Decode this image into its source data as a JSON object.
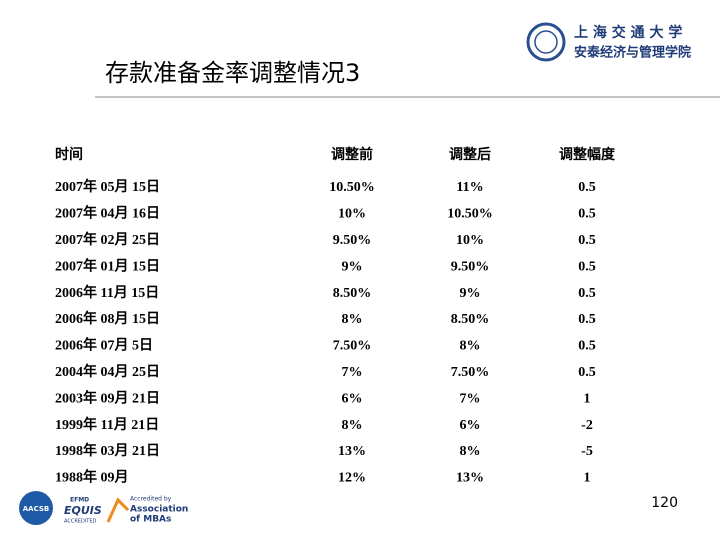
{
  "header": {
    "university": "上 海 交 通 大 学",
    "school": "安泰经济与管理学院"
  },
  "title": "存款准备金率调整情况3",
  "table": {
    "columns": [
      "时间",
      "调整前",
      "调整后",
      "调整幅度"
    ],
    "rows": [
      [
        "2007年 05月 15日",
        "10.50%",
        "11%",
        "0.5"
      ],
      [
        "2007年 04月 16日",
        "10%",
        "10.50%",
        "0.5"
      ],
      [
        "2007年 02月 25日",
        "9.50%",
        "10%",
        "0.5"
      ],
      [
        "2007年 01月 15日",
        "9%",
        "9.50%",
        "0.5"
      ],
      [
        "2006年 11月 15日",
        "8.50%",
        "9%",
        "0.5"
      ],
      [
        "2006年 08月 15日",
        "8%",
        "8.50%",
        "0.5"
      ],
      [
        "2006年 07月 5日",
        "7.50%",
        "8%",
        "0.5"
      ],
      [
        "2004年 04月 25日",
        "7%",
        "7.50%",
        "0.5"
      ],
      [
        "2003年 09月 21日",
        "6%",
        "7%",
        "1"
      ],
      [
        "1999年 11月 21日",
        "8%",
        "6%",
        "-2"
      ],
      [
        "1998年 03月 21日",
        "13%",
        "8%",
        "-5"
      ],
      [
        "1988年 09月",
        "12%",
        "13%",
        "1"
      ]
    ]
  },
  "page_number": "120",
  "footer": {
    "aacsb": "AACSB",
    "efmd": "EFMD",
    "equis": "EQUIS",
    "equis_sub": "ACCREDITED",
    "amba_1": "Accredited by",
    "amba_2": "Association",
    "amba_3": "of MBAs"
  }
}
